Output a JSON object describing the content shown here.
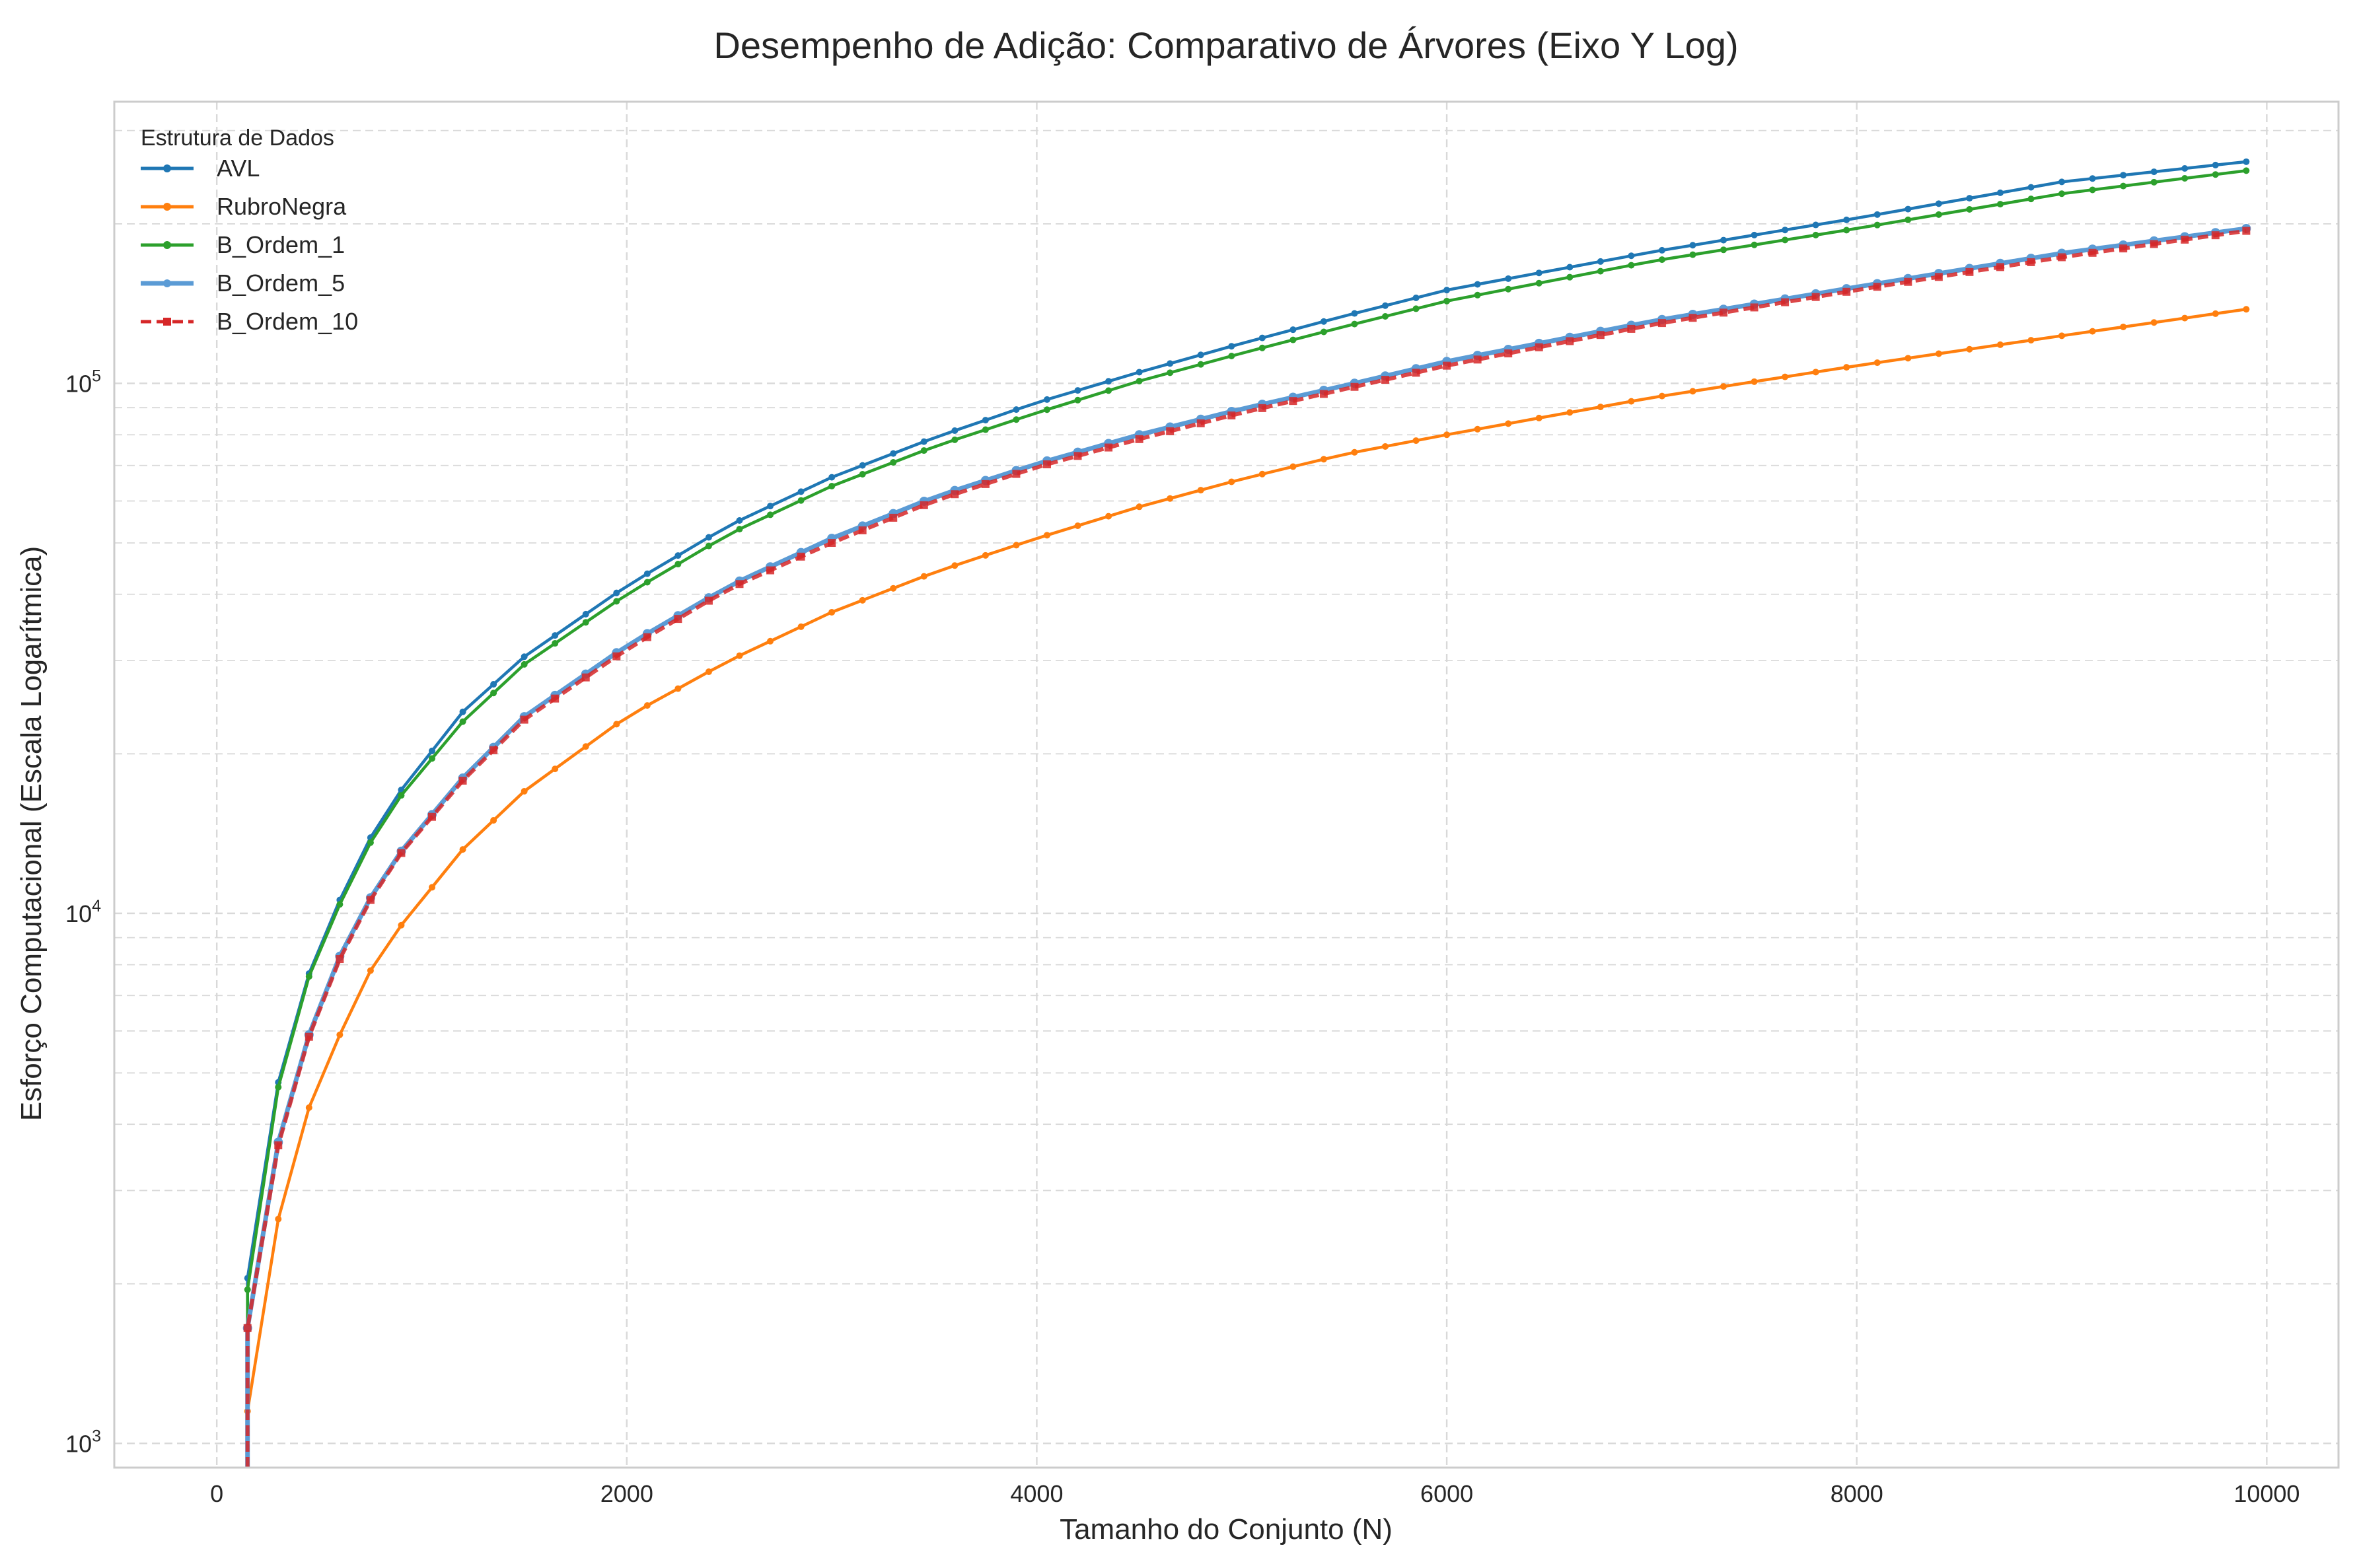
{
  "chart_data": {
    "type": "line",
    "title": "Desempenho de Adição: Comparativo de Árvores (Eixo Y Log)",
    "xlabel": "Tamanho do Conjunto (N)",
    "ylabel": "Esforço Computacional (Escala Logarítmica)",
    "x_scale": "linear",
    "y_scale": "log",
    "xlim": [
      -500,
      10350
    ],
    "ylim": [
      900,
      340000
    ],
    "x_ticks": [
      0,
      2000,
      4000,
      6000,
      8000,
      10000
    ],
    "x_tick_labels": [
      "0",
      "2000",
      "4000",
      "6000",
      "8000",
      "10000"
    ],
    "y_ticks": [
      1000,
      10000,
      100000
    ],
    "y_tick_labels": [
      {
        "base": "10",
        "exp": "3"
      },
      {
        "base": "10",
        "exp": "4"
      },
      {
        "base": "10",
        "exp": "5"
      }
    ],
    "grid": true,
    "legend": {
      "title": "Estrutura de Dados",
      "position": "top-left"
    },
    "colors": {
      "AVL": "#1f77b4",
      "RubroNegra": "#ff7f0e",
      "B_Ordem_1": "#2ca02c",
      "B_Ordem_5": "#5b9bd5",
      "B_Ordem_10": "#d62728"
    },
    "x": {
      "start": 150,
      "step": 150,
      "count": 66
    },
    "series": [
      {
        "name": "AVL",
        "color": "#1f77b4",
        "marker": "circle",
        "dash": "solid",
        "anchors": [
          [
            150,
            2050
          ],
          [
            300,
            4800
          ],
          [
            450,
            7700
          ],
          [
            600,
            10600
          ],
          [
            750,
            13900
          ],
          [
            900,
            17100
          ],
          [
            1200,
            24000
          ],
          [
            1500,
            30500
          ],
          [
            2000,
            41500
          ],
          [
            2500,
            54000
          ],
          [
            3000,
            66500
          ],
          [
            3500,
            79000
          ],
          [
            4000,
            92000
          ],
          [
            4500,
            105000
          ],
          [
            5000,
            119000
          ],
          [
            5500,
            134000
          ],
          [
            6000,
            150000
          ],
          [
            7000,
            177000
          ],
          [
            8000,
            205000
          ],
          [
            9000,
            240000
          ],
          [
            9900,
            262000
          ]
        ]
      },
      {
        "name": "RubroNegra",
        "color": "#ff7f0e",
        "marker": "circle",
        "dash": "solid",
        "anchors": [
          [
            150,
            1150
          ],
          [
            300,
            2650
          ],
          [
            450,
            4300
          ],
          [
            600,
            5900
          ],
          [
            750,
            7800
          ],
          [
            900,
            9500
          ],
          [
            1200,
            13200
          ],
          [
            1500,
            17000
          ],
          [
            2000,
            23500
          ],
          [
            2500,
            30000
          ],
          [
            3000,
            37000
          ],
          [
            3500,
            44000
          ],
          [
            4000,
            51000
          ],
          [
            4500,
            58500
          ],
          [
            5000,
            66000
          ],
          [
            5500,
            73500
          ],
          [
            6000,
            80000
          ],
          [
            7000,
            94000
          ],
          [
            8000,
            108000
          ],
          [
            9000,
            123000
          ],
          [
            9900,
            138000
          ]
        ]
      },
      {
        "name": "B_Ordem_1",
        "color": "#2ca02c",
        "marker": "circle",
        "dash": "solid",
        "anchors": [
          [
            150,
            1950
          ],
          [
            300,
            4700
          ],
          [
            450,
            7600
          ],
          [
            600,
            10400
          ],
          [
            750,
            13600
          ],
          [
            900,
            16700
          ],
          [
            1200,
            23000
          ],
          [
            1500,
            29500
          ],
          [
            2000,
            40000
          ],
          [
            2500,
            52000
          ],
          [
            3000,
            64000
          ],
          [
            3500,
            76000
          ],
          [
            4000,
            88000
          ],
          [
            4500,
            101000
          ],
          [
            5000,
            114000
          ],
          [
            5500,
            128000
          ],
          [
            6000,
            143000
          ],
          [
            7000,
            170000
          ],
          [
            8000,
            196000
          ],
          [
            9000,
            228000
          ],
          [
            9900,
            252000
          ]
        ]
      },
      {
        "name": "B_Ordem_5",
        "color": "#5b9bd5",
        "marker": "circle",
        "dash": "solid",
        "anchors": [
          [
            150,
            1650
          ],
          [
            300,
            3700
          ],
          [
            450,
            5900
          ],
          [
            600,
            8300
          ],
          [
            750,
            10700
          ],
          [
            900,
            13100
          ],
          [
            1200,
            18000
          ],
          [
            1500,
            23500
          ],
          [
            2000,
            32000
          ],
          [
            2500,
            41500
          ],
          [
            3000,
            51000
          ],
          [
            3500,
            61000
          ],
          [
            4000,
            70500
          ],
          [
            4500,
            80000
          ],
          [
            5000,
            89500
          ],
          [
            5500,
            99000
          ],
          [
            6000,
            110000
          ],
          [
            7000,
            131000
          ],
          [
            8000,
            152000
          ],
          [
            9000,
            176000
          ],
          [
            9900,
            196000
          ]
        ]
      },
      {
        "name": "B_Ordem_10",
        "color": "#d62728",
        "marker": "square",
        "dash": "dashed",
        "anchors": [
          [
            150,
            1650
          ],
          [
            300,
            3650
          ],
          [
            450,
            5850
          ],
          [
            600,
            8200
          ],
          [
            750,
            10600
          ],
          [
            900,
            13000
          ],
          [
            1200,
            17800
          ],
          [
            1500,
            23200
          ],
          [
            2000,
            31500
          ],
          [
            2500,
            41000
          ],
          [
            3000,
            50000
          ],
          [
            3500,
            60000
          ],
          [
            4000,
            69500
          ],
          [
            4500,
            78500
          ],
          [
            5000,
            88000
          ],
          [
            5500,
            97500
          ],
          [
            6000,
            108000
          ],
          [
            7000,
            129000
          ],
          [
            8000,
            150000
          ],
          [
            9000,
            173000
          ],
          [
            9900,
            194000
          ]
        ]
      }
    ]
  }
}
